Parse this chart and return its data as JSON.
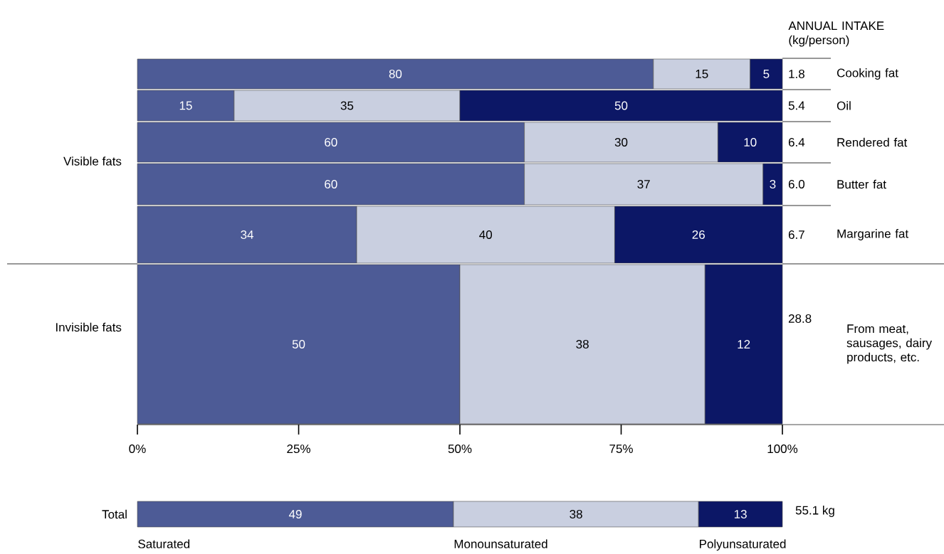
{
  "chart_data": [
    {
      "type": "bar",
      "orientation": "horizontal",
      "stacked": true,
      "data_labels": true,
      "tick_labels": "y",
      "categories": [
        "Cooking fat",
        "Oil",
        "Rendered fat",
        "Butter fat",
        "Margarine fat"
      ],
      "series": [
        {
          "color": "#4d5b96",
          "values": [
            80,
            15,
            60,
            60,
            34
          ]
        },
        {
          "color": "#c9cfe0",
          "values": [
            15,
            35,
            30,
            37,
            40
          ]
        },
        {
          "color": "#0c1766",
          "values": [
            5,
            50,
            10,
            3,
            26
          ]
        }
      ],
      "xlim": [
        0,
        100
      ],
      "annotations": [
        "ANNUAL INTAKE (kg/person)",
        "1.8",
        "5.4",
        "6.4",
        "6.0",
        "6.7",
        "Visible fats"
      ]
    },
    {
      "type": "bar",
      "orientation": "horizontal",
      "stacked": true,
      "data_labels": true,
      "categories": [
        "From meat, sausages, dairy products, etc."
      ],
      "series": [
        {
          "color": "#4d5b96",
          "values": [
            50
          ]
        },
        {
          "color": "#c9cfe0",
          "values": [
            38
          ]
        },
        {
          "color": "#0c1766",
          "values": [
            12
          ]
        }
      ],
      "xlim": [
        0,
        100
      ],
      "xticks": [
        {
          "value": 0,
          "label": "0%"
        },
        {
          "value": 25,
          "label": "25%"
        },
        {
          "value": 50,
          "label": "50%"
        },
        {
          "value": 75,
          "label": "75%"
        },
        {
          "value": 100,
          "label": "100%"
        }
      ],
      "annotations": [
        "28.8",
        "Invisible fats"
      ]
    },
    {
      "type": "bar",
      "orientation": "horizontal",
      "stacked": true,
      "data_labels": true,
      "tick_labels": "y",
      "categories": [
        "Total"
      ],
      "series": [
        {
          "name": "Saturated",
          "color": "#4d5b96",
          "values": [
            49
          ]
        },
        {
          "name": "Monounsaturated",
          "color": "#c9cfe0",
          "values": [
            38
          ]
        },
        {
          "name": "Polyunsaturated",
          "color": "#0c1766",
          "values": [
            13
          ]
        }
      ],
      "xlim": [
        0,
        100
      ],
      "annotations": [
        "55.1 kg"
      ]
    }
  ]
}
